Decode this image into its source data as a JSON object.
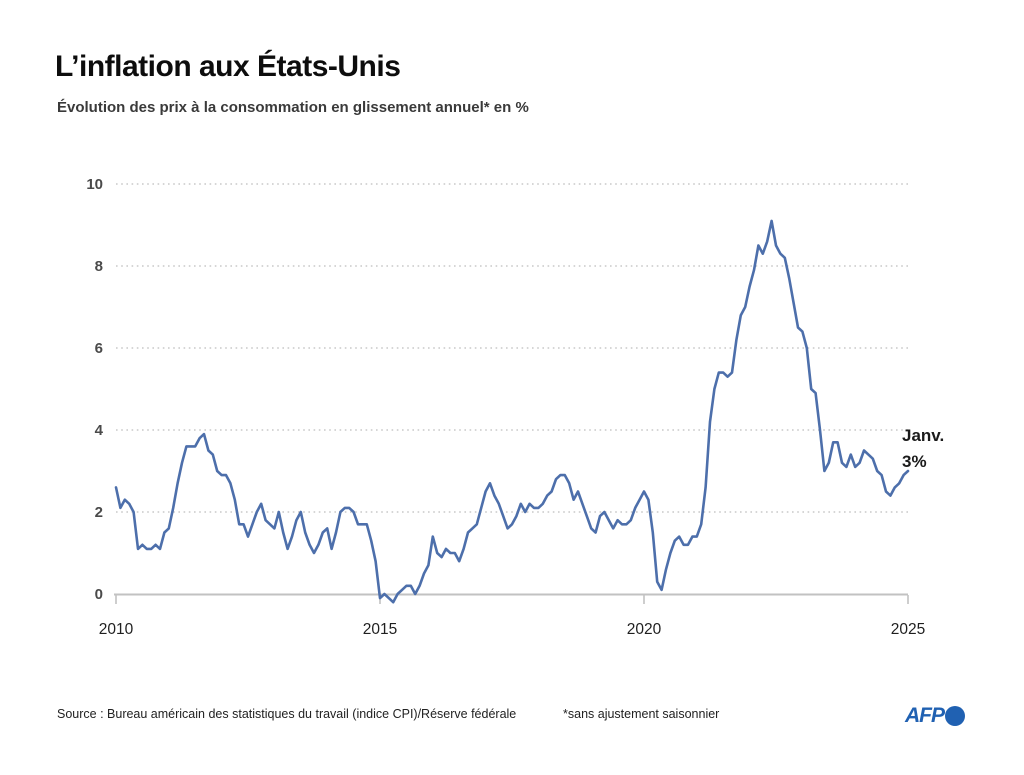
{
  "header": {
    "title": "L’inflation aux États-Unis",
    "subtitle": "Évolution des prix à la consommation en glissement annuel* en %"
  },
  "chart_data": {
    "type": "line",
    "title": "L’inflation aux États-Unis",
    "xlabel": "",
    "ylabel": "%",
    "ylim": [
      0,
      10
    ],
    "yticks": [
      0,
      2,
      4,
      6,
      8,
      10
    ],
    "grid": "horizontal-dotted",
    "legend": "none",
    "line_color": "#4d6fab",
    "grid_color": "#c9c9c9",
    "axis_color": "#c2c2c2",
    "xticks": [
      {
        "label": "2010",
        "month_index": 0
      },
      {
        "label": "2015",
        "month_index": 60
      },
      {
        "label": "2020",
        "month_index": 120
      },
      {
        "label": "2025",
        "month_index": 180
      }
    ],
    "series": [
      {
        "name": "Prix à la consommation, glissement annuel en %",
        "start": "2010-01",
        "end": "2025-01",
        "monthly_values": [
          2.6,
          2.1,
          2.3,
          2.2,
          2.0,
          1.1,
          1.2,
          1.1,
          1.1,
          1.2,
          1.1,
          1.5,
          1.6,
          2.1,
          2.7,
          3.2,
          3.6,
          3.6,
          3.6,
          3.8,
          3.9,
          3.5,
          3.4,
          3.0,
          2.9,
          2.9,
          2.7,
          2.3,
          1.7,
          1.7,
          1.4,
          1.7,
          2.0,
          2.2,
          1.8,
          1.7,
          1.6,
          2.0,
          1.5,
          1.1,
          1.4,
          1.8,
          2.0,
          1.5,
          1.2,
          1.0,
          1.2,
          1.5,
          1.6,
          1.1,
          1.5,
          2.0,
          2.1,
          2.1,
          2.0,
          1.7,
          1.7,
          1.7,
          1.3,
          0.8,
          -0.1,
          0.0,
          -0.1,
          -0.2,
          0.0,
          0.1,
          0.2,
          0.2,
          0.0,
          0.2,
          0.5,
          0.7,
          1.4,
          1.0,
          0.9,
          1.1,
          1.0,
          1.0,
          0.8,
          1.1,
          1.5,
          1.6,
          1.7,
          2.1,
          2.5,
          2.7,
          2.4,
          2.2,
          1.9,
          1.6,
          1.7,
          1.9,
          2.2,
          2.0,
          2.2,
          2.1,
          2.1,
          2.2,
          2.4,
          2.5,
          2.8,
          2.9,
          2.9,
          2.7,
          2.3,
          2.5,
          2.2,
          1.9,
          1.6,
          1.5,
          1.9,
          2.0,
          1.8,
          1.6,
          1.8,
          1.7,
          1.7,
          1.8,
          2.1,
          2.3,
          2.5,
          2.3,
          1.5,
          0.3,
          0.1,
          0.6,
          1.0,
          1.3,
          1.4,
          1.2,
          1.2,
          1.4,
          1.4,
          1.7,
          2.6,
          4.2,
          5.0,
          5.4,
          5.4,
          5.3,
          5.4,
          6.2,
          6.8,
          7.0,
          7.5,
          7.9,
          8.5,
          8.3,
          8.6,
          9.1,
          8.5,
          8.3,
          8.2,
          7.7,
          7.1,
          6.5,
          6.4,
          6.0,
          5.0,
          4.9,
          4.0,
          3.0,
          3.2,
          3.7,
          3.7,
          3.2,
          3.1,
          3.4,
          3.1,
          3.2,
          3.5,
          3.4,
          3.3,
          3.0,
          2.9,
          2.5,
          2.4,
          2.6,
          2.7,
          2.9,
          3.0
        ]
      }
    ],
    "annotation": {
      "line1": "Janv.",
      "line2": "3%",
      "value": 3.0,
      "month_index": 180
    }
  },
  "footer": {
    "source": "Source : Bureau américain des statistiques du travail (indice CPI)/Réserve fédérale",
    "note": "*sans ajustement saisonnier",
    "logo_text": "AFP"
  },
  "colors": {
    "line": "#4d6fab",
    "grid": "#c9c9c9",
    "axis": "#c2c2c2",
    "logo_blue": "#2061b2"
  }
}
